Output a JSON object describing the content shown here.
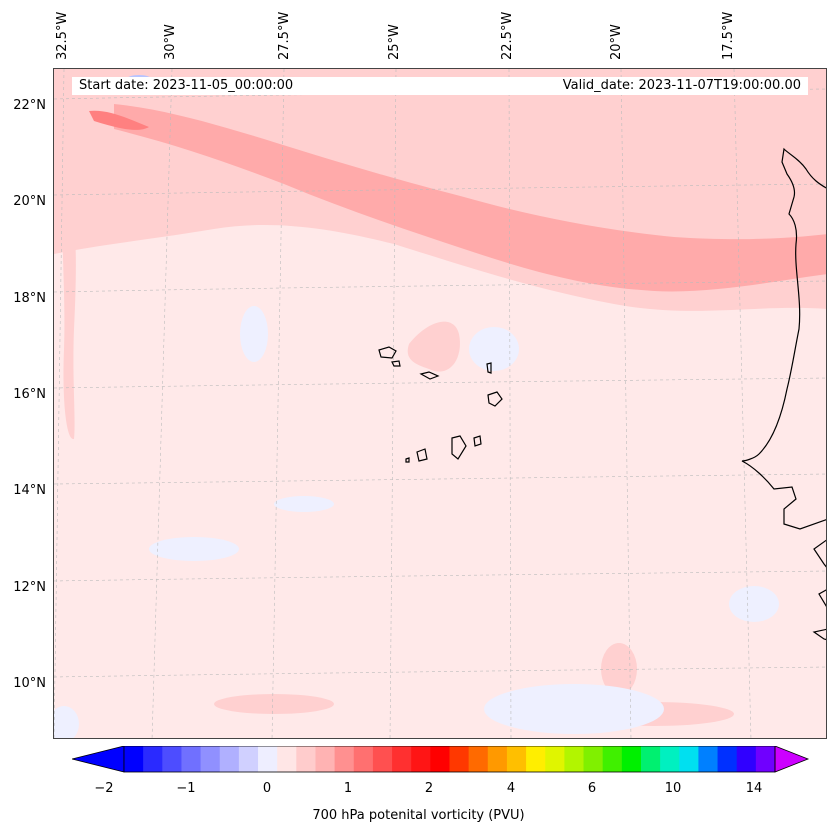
{
  "map": {
    "start_date": "Start date: 2023-11-05_00:00:00",
    "valid_date": "Valid_date: 2023-11-07T19:00:00.00",
    "longitude_labels": [
      "32.5°W",
      "30°W",
      "27.5°W",
      "25°W",
      "22.5°W",
      "20°W",
      "17.5°W"
    ],
    "latitude_labels": [
      "22°N",
      "20°N",
      "18°N",
      "16°N",
      "14°N",
      "12°N",
      "10°N"
    ],
    "background_field_color": "#ffe9e9",
    "band_colors": {
      "light": "#ffd0d0",
      "medium": "#ffaaaa",
      "strong": "#ff8080",
      "negative": "#eef0ff",
      "negative_strong": "#b8c4ff"
    }
  },
  "colorbar": {
    "label": "700 hPa potenital vorticity (PVU)",
    "ticks": [
      "−2",
      "−1",
      "0",
      "1",
      "2",
      "4",
      "6",
      "10",
      "14"
    ],
    "colors": [
      "#0000ff",
      "#2a2aff",
      "#4d4dff",
      "#7070ff",
      "#9090ff",
      "#b0b0ff",
      "#d0d0ff",
      "#eeeeff",
      "#ffe6e6",
      "#ffcccc",
      "#ffb3b3",
      "#ff9090",
      "#ff7070",
      "#ff5050",
      "#ff3030",
      "#ff1515",
      "#ff0000",
      "#ff3800",
      "#ff6a00",
      "#ff9900",
      "#ffbf00",
      "#ffee00",
      "#e0f500",
      "#b2f500",
      "#80f000",
      "#40f000",
      "#00f000",
      "#00f070",
      "#00f0c0",
      "#00e0f0",
      "#0080ff",
      "#0030ff",
      "#3000ff",
      "#7000ff"
    ],
    "under_color": "#0000ff",
    "over_color": "#cc00ff"
  }
}
